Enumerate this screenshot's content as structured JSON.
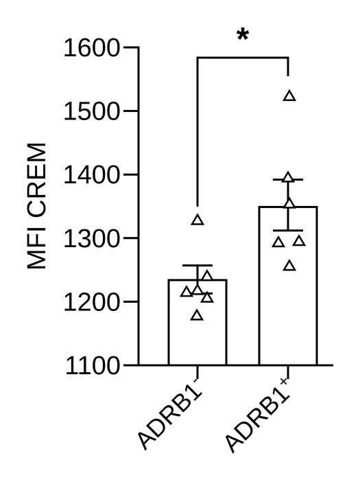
{
  "chart_data": {
    "type": "bar",
    "ylabel": "MFI CREM",
    "ylim": [
      1100,
      1600
    ],
    "yticks": [
      1100,
      1200,
      1300,
      1400,
      1500,
      1600
    ],
    "categories": [
      {
        "base": "ADRB1",
        "sup": "-"
      },
      {
        "base": "ADRB1",
        "sup": "+"
      }
    ],
    "bars": [
      {
        "mean": 1234,
        "err_low": 1213,
        "err_high": 1257,
        "points": [
          1178,
          1206,
          1215,
          1218,
          1240,
          1328
        ]
      },
      {
        "mean": 1349,
        "err_low": 1312,
        "err_high": 1392,
        "points": [
          1256,
          1293,
          1295,
          1354,
          1395,
          1523
        ]
      }
    ],
    "significance": {
      "between": [
        0,
        1
      ],
      "label": "*"
    },
    "colors": {
      "bar_fill": "#ffffff",
      "stroke": "#000000"
    }
  }
}
